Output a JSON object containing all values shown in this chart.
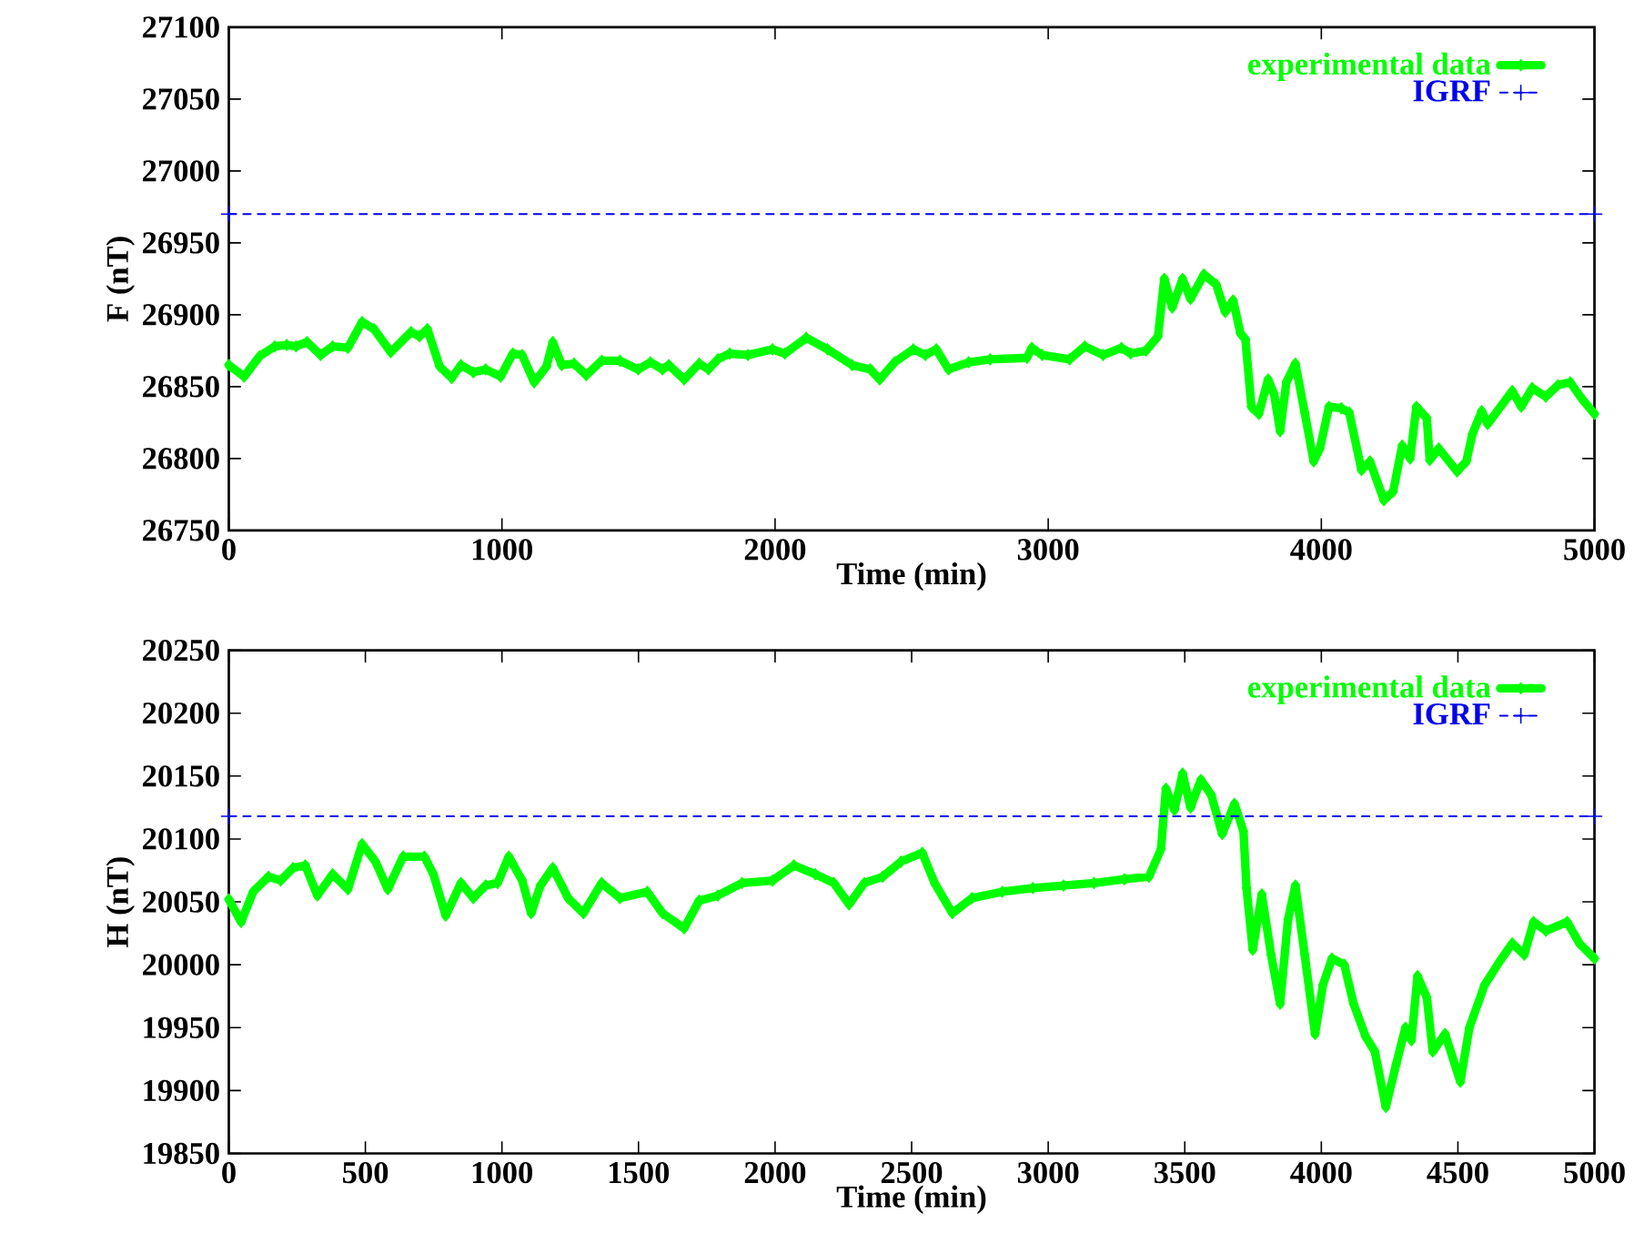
{
  "chart_data": [
    {
      "type": "line",
      "xlabel": "Time (min)",
      "ylabel": "F (nT)",
      "xlim": [
        0,
        5000
      ],
      "ylim": [
        26750,
        27100
      ],
      "xticks": [
        0,
        1000,
        2000,
        3000,
        4000,
        5000
      ],
      "yticks": [
        26750,
        26800,
        26850,
        26900,
        26950,
        27000,
        27050,
        27100
      ],
      "legend": "top right",
      "series": [
        {
          "name": "experimental data",
          "color": "#00ff00",
          "marker": "diamond",
          "line_style": "solid",
          "x": [
            0,
            56,
            112,
            168,
            212,
            246,
            286,
            336,
            380,
            436,
            488,
            532,
            593,
            667,
            698,
            727,
            772,
            816,
            850,
            895,
            940,
            995,
            1040,
            1074,
            1118,
            1163,
            1186,
            1219,
            1264,
            1309,
            1365,
            1432,
            1499,
            1544,
            1588,
            1611,
            1667,
            1722,
            1756,
            1790,
            1834,
            1901,
            1991,
            2036,
            2114,
            2192,
            2282,
            2349,
            2383,
            2438,
            2506,
            2550,
            2590,
            2635,
            2709,
            2788,
            2922,
            2940,
            2978,
            3078,
            3134,
            3201,
            3268,
            3302,
            3358,
            3402,
            3425,
            3454,
            3492,
            3521,
            3570,
            3615,
            3648,
            3677,
            3704,
            3722,
            3744,
            3771,
            3805,
            3827,
            3849,
            3872,
            3905,
            3939,
            3972,
            3995,
            4028,
            4073,
            4102,
            4147,
            4178,
            4229,
            4263,
            4296,
            4325,
            4348,
            4386,
            4397,
            4430,
            4497,
            4531,
            4553,
            4587,
            4609,
            4699,
            4732,
            4772,
            4822,
            4866,
            4911,
            4956,
            5000
          ],
          "values": [
            26865,
            26857,
            26871,
            26878,
            26879,
            26878,
            26881,
            26872,
            26878,
            26877,
            26895,
            26890,
            26874,
            26888,
            26885,
            26890,
            26864,
            26856,
            26865,
            26860,
            26862,
            26857,
            26873,
            26872,
            26853,
            26864,
            26881,
            26865,
            26866,
            26858,
            26868,
            26868,
            26862,
            26867,
            26862,
            26865,
            26855,
            26866,
            26862,
            26869,
            26873,
            26872,
            26876,
            26873,
            26884,
            26876,
            26865,
            26862,
            26855,
            26867,
            26876,
            26872,
            26876,
            26862,
            26867,
            26869,
            26870,
            26877,
            26872,
            26869,
            26878,
            26872,
            26877,
            26873,
            26875,
            26885,
            26925,
            26905,
            26925,
            26911,
            26928,
            26921,
            26902,
            26910,
            26887,
            26883,
            26836,
            26831,
            26855,
            26845,
            26819,
            26853,
            26866,
            26832,
            26798,
            26807,
            26836,
            26835,
            26832,
            26792,
            26798,
            26771,
            26777,
            26809,
            26800,
            26836,
            26828,
            26799,
            26807,
            26791,
            26798,
            26817,
            26833,
            26824,
            26847,
            26836,
            26849,
            26843,
            26851,
            26853,
            26841,
            26831
          ]
        },
        {
          "name": "IGRF",
          "color": "#0000ee",
          "marker": "cross",
          "line_style": "dashed",
          "x": [
            0,
            5000
          ],
          "values": [
            26970,
            26970
          ]
        }
      ]
    },
    {
      "type": "line",
      "xlabel": "Time (min)",
      "ylabel": "H (nT)",
      "xlim": [
        0,
        5000
      ],
      "ylim": [
        19850,
        20250
      ],
      "xticks": [
        0,
        500,
        1000,
        1500,
        2000,
        2500,
        3000,
        3500,
        4000,
        4500,
        5000
      ],
      "yticks": [
        19850,
        19900,
        19950,
        20000,
        20050,
        20100,
        20150,
        20200,
        20250
      ],
      "legend": "top right",
      "series": [
        {
          "name": "experimental data",
          "color": "#00ff00",
          "marker": "diamond",
          "line_style": "solid",
          "x": [
            0,
            45,
            89,
            145,
            190,
            235,
            280,
            324,
            380,
            436,
            488,
            537,
            582,
            638,
            716,
            749,
            794,
            850,
            895,
            940,
            984,
            1025,
            1074,
            1107,
            1141,
            1186,
            1242,
            1298,
            1365,
            1432,
            1532,
            1588,
            1667,
            1722,
            1790,
            1879,
            1991,
            2069,
            2147,
            2215,
            2271,
            2327,
            2394,
            2461,
            2539,
            2584,
            2649,
            2721,
            2832,
            2944,
            3056,
            3168,
            3279,
            3369,
            3413,
            3431,
            3462,
            3492,
            3521,
            3559,
            3597,
            3637,
            3682,
            3715,
            3726,
            3749,
            3782,
            3816,
            3849,
            3878,
            3905,
            3939,
            3977,
            4006,
            4039,
            4084,
            4118,
            4162,
            4196,
            4236,
            4274,
            4308,
            4330,
            4352,
            4386,
            4408,
            4453,
            4509,
            4542,
            4598,
            4654,
            4699,
            4743,
            4777,
            4822,
            4900,
            4945,
            5000
          ],
          "values": [
            20052,
            20034,
            20058,
            20070,
            20067,
            20077,
            20079,
            20055,
            20072,
            20060,
            20096,
            20082,
            20060,
            20086,
            20086,
            20072,
            20039,
            20065,
            20053,
            20063,
            20065,
            20086,
            20067,
            20041,
            20063,
            20077,
            20053,
            20041,
            20065,
            20053,
            20058,
            20041,
            20029,
            20051,
            20055,
            20065,
            20067,
            20079,
            20072,
            20065,
            20048,
            20065,
            20070,
            20082,
            20089,
            20065,
            20041,
            20053,
            20058,
            20061,
            20063,
            20065,
            20068,
            20070,
            20092,
            20140,
            20123,
            20152,
            20125,
            20147,
            20135,
            20104,
            20128,
            20106,
            20061,
            20012,
            20056,
            20008,
            19969,
            20036,
            20063,
            20008,
            19945,
            19984,
            20005,
            20000,
            19969,
            19943,
            19931,
            19887,
            19921,
            19950,
            19940,
            19991,
            19974,
            19931,
            19945,
            19907,
            19950,
            19984,
            20003,
            20017,
            20008,
            20034,
            20027,
            20034,
            20017,
            20005
          ]
        },
        {
          "name": "IGRF",
          "color": "#0000ee",
          "marker": "cross",
          "line_style": "dashed",
          "x": [
            0,
            5000
          ],
          "values": [
            20118,
            20118
          ]
        }
      ]
    }
  ]
}
